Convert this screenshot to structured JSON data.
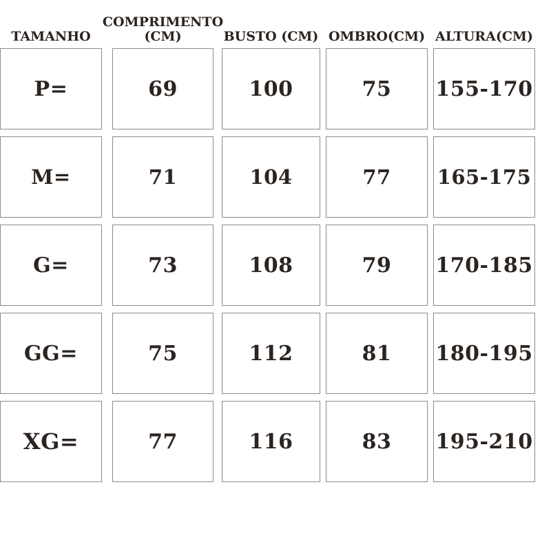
{
  "chart_data": {
    "type": "table",
    "title": "",
    "columns": [
      {
        "key": "tamanho",
        "label_lines": [
          "TAMANHO"
        ]
      },
      {
        "key": "comprimento",
        "label_lines": [
          "COMPRIMENTO",
          "(CM)"
        ]
      },
      {
        "key": "busto",
        "label_lines": [
          "BUSTO (CM)"
        ]
      },
      {
        "key": "ombro",
        "label_lines": [
          "OMBRO(CM)"
        ]
      },
      {
        "key": "altura",
        "label_lines": [
          "ALTURA(CM)"
        ]
      }
    ],
    "rows": [
      {
        "tamanho": "P=",
        "comprimento": "69",
        "busto": "100",
        "ombro": "75",
        "altura": "155-170"
      },
      {
        "tamanho": "M=",
        "comprimento": "71",
        "busto": "104",
        "ombro": "77",
        "altura": "165-175"
      },
      {
        "tamanho": "G=",
        "comprimento": "73",
        "busto": "108",
        "ombro": "79",
        "altura": "170-185"
      },
      {
        "tamanho": "GG=",
        "comprimento": "75",
        "busto": "112",
        "ombro": "81",
        "altura": "180-195"
      },
      {
        "tamanho": "XG=",
        "comprimento": "77",
        "busto": "116",
        "ombro": "83",
        "altura": "195-210"
      }
    ],
    "colors": {
      "text": "#2b2420",
      "border": "#8a8a8a",
      "background": "#ffffff"
    }
  }
}
